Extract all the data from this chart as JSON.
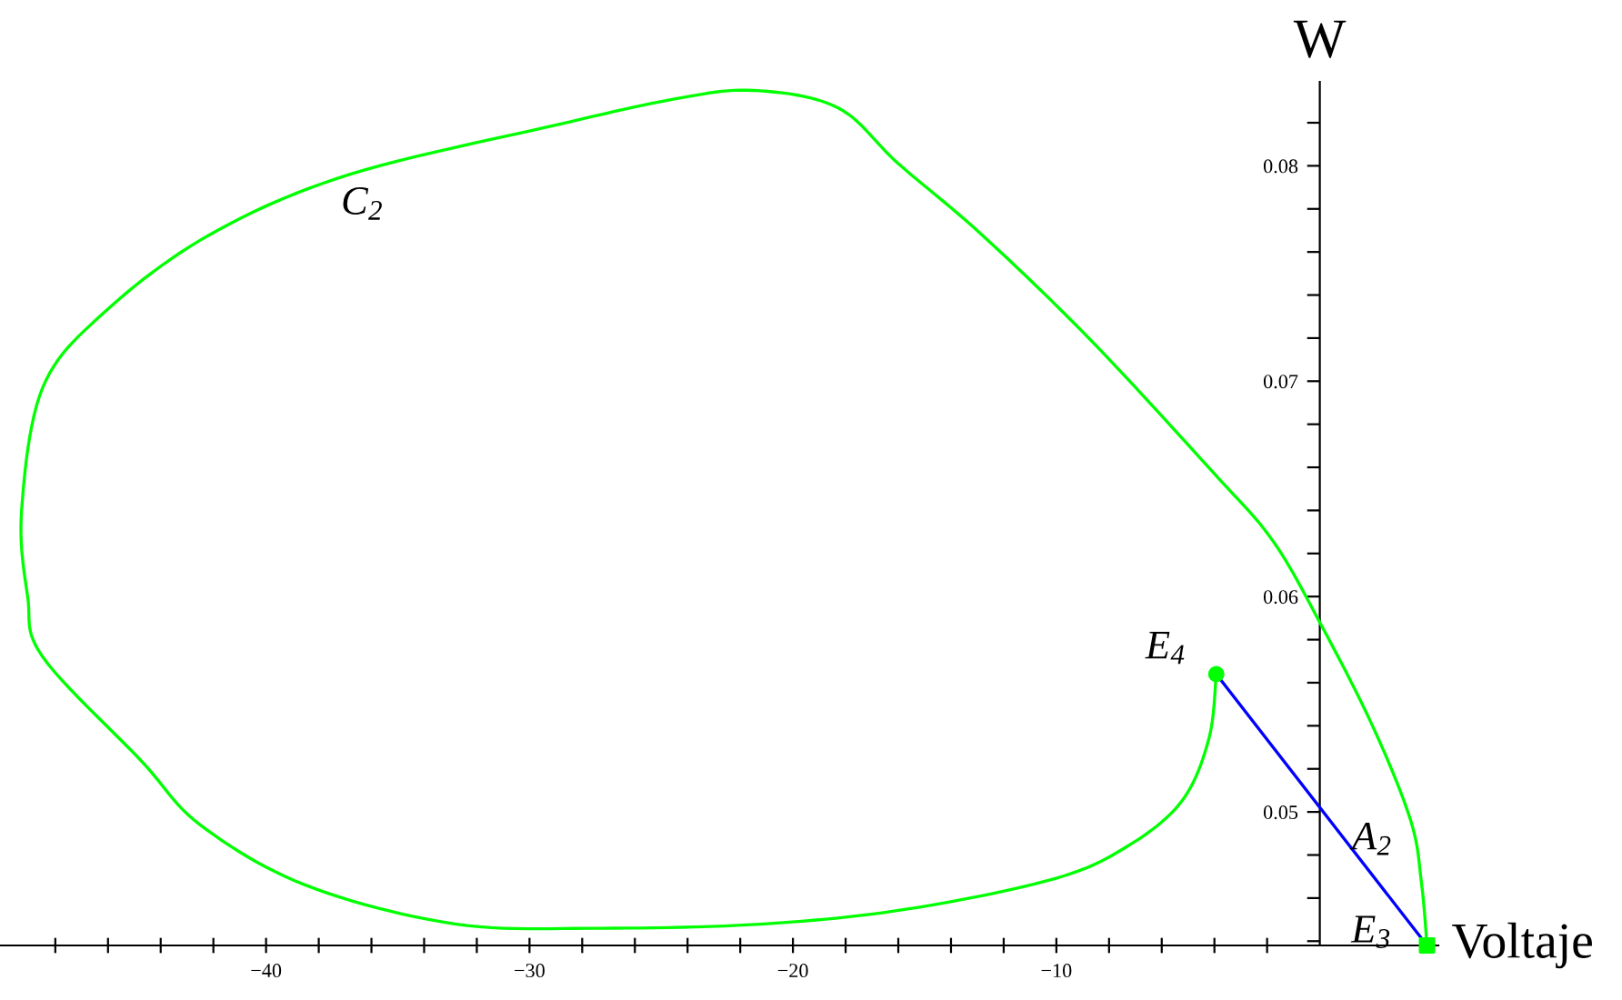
{
  "chart_data": {
    "type": "line",
    "xlabel": "Voltaje",
    "ylabel": "W",
    "series": [
      {
        "type": "line",
        "color": "#00ff00",
        "x": [
          -3.93,
          -4.21,
          -5.24,
          -7.31,
          -10.07,
          -15.59,
          -21.1,
          -27.31,
          -32.83,
          -38.5,
          -42.5,
          -44.76,
          -48.48,
          -49.05,
          -49.28,
          -48.48,
          -46.14,
          -42.14,
          -36.83,
          -28.97,
          -24.5,
          -21.5,
          -18.3,
          -16.0,
          -12.83,
          -8.69,
          -4.0,
          -1.79,
          0.0,
          2.0,
          3.45,
          3.86,
          4.07
        ],
        "values": [
          0.0564,
          0.0534,
          0.0505,
          0.0484,
          0.0469,
          0.0455,
          0.0448,
          0.0446,
          0.0448,
          0.0466,
          0.0494,
          0.0524,
          0.0572,
          0.06,
          0.064,
          0.0697,
          0.0732,
          0.0768,
          0.0796,
          0.0819,
          0.0831,
          0.0835,
          0.0827,
          0.0801,
          0.0768,
          0.0719,
          0.0657,
          0.0626,
          0.0588,
          0.054,
          0.0496,
          0.0467,
          0.0438
        ]
      },
      {
        "type": "line",
        "color": "#0000ff",
        "x": [
          -3.93,
          4.07
        ],
        "values": [
          0.0564,
          0.0438
        ]
      },
      {
        "type": "scatter",
        "color": "#00ff00",
        "marker": "circle",
        "x": [
          -3.93
        ],
        "values": [
          0.0564
        ]
      },
      {
        "type": "scatter",
        "color": "#00ff00",
        "marker": "square",
        "x": [
          4.07
        ],
        "values": [
          0.0438
        ]
      }
    ],
    "annotations": [
      {
        "text": "C$_{2}$",
        "x": -36.83,
        "y": 0.0796
      },
      {
        "text": "E$_{4}$",
        "x": -3.93,
        "y": 0.0564
      },
      {
        "text": "A$_{2}$",
        "x": 0.07,
        "y": 0.0501
      },
      {
        "text": "E$_{3}$",
        "x": 4.07,
        "y": 0.0438
      }
    ],
    "xlim": [
      -50.1,
      4.5
    ],
    "ylim": [
      0.0438,
      0.0839
    ],
    "xticks": [
      {
        "value": -48,
        "label": null
      },
      {
        "value": -46,
        "label": null
      },
      {
        "value": -44,
        "label": null
      },
      {
        "value": -42,
        "label": null
      },
      {
        "value": -40,
        "label": "−40"
      },
      {
        "value": -38,
        "label": null
      },
      {
        "value": -36,
        "label": null
      },
      {
        "value": -34,
        "label": null
      },
      {
        "value": -32,
        "label": null
      },
      {
        "value": -30,
        "label": "−30"
      },
      {
        "value": -28,
        "label": null
      },
      {
        "value": -26,
        "label": null
      },
      {
        "value": -24,
        "label": null
      },
      {
        "value": -22,
        "label": null
      },
      {
        "value": -20,
        "label": "−20"
      },
      {
        "value": -18,
        "label": null
      },
      {
        "value": -16,
        "label": null
      },
      {
        "value": -14,
        "label": null
      },
      {
        "value": -12,
        "label": null
      },
      {
        "value": -10,
        "label": "−10"
      },
      {
        "value": -8,
        "label": null
      },
      {
        "value": -6,
        "label": null
      },
      {
        "value": -4,
        "label": null
      },
      {
        "value": -2,
        "label": null
      }
    ],
    "yticks": [
      {
        "value": 0.044,
        "label": null
      },
      {
        "value": 0.046,
        "label": null
      },
      {
        "value": 0.048,
        "label": null
      },
      0.05,
      {
        "value": 0.052,
        "label": null
      },
      {
        "value": 0.054,
        "label": null
      },
      {
        "value": 0.056,
        "label": null
      },
      {
        "value": 0.058,
        "label": null
      },
      0.06,
      {
        "value": 0.062,
        "label": null
      },
      {
        "value": 0.064,
        "label": null
      },
      {
        "value": 0.066,
        "label": null
      },
      {
        "value": 0.068,
        "label": null
      },
      0.07,
      {
        "value": 0.072,
        "label": null
      },
      {
        "value": 0.074,
        "label": null
      },
      {
        "value": 0.076,
        "label": null
      },
      {
        "value": 0.078,
        "label": null
      },
      0.08,
      {
        "value": 0.082,
        "label": null
      }
    ],
    "grid": false,
    "legend": false
  }
}
